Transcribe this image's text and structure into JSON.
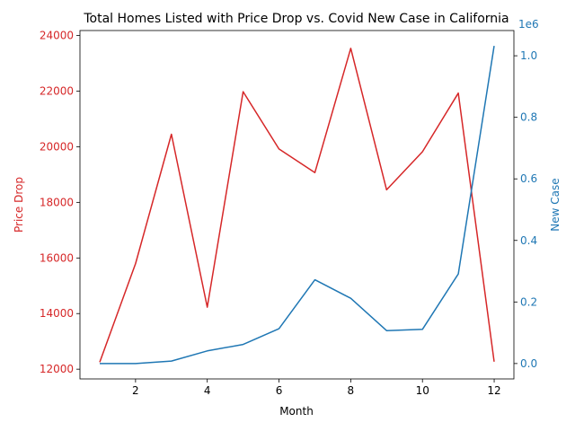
{
  "chart_data": {
    "type": "line",
    "title": "Total Homes Listed with Price Drop vs. Covid New Case in California",
    "xlabel": "Month",
    "x": [
      1,
      2,
      3,
      4,
      5,
      6,
      7,
      8,
      9,
      10,
      11,
      12
    ],
    "xticks": [
      2,
      4,
      6,
      8,
      10,
      12
    ],
    "xlim": [
      0.45,
      12.55
    ],
    "left_axis": {
      "label": "Price Drop",
      "color": "#d62728",
      "ylim": [
        11650,
        24180
      ],
      "ticks": [
        12000,
        14000,
        16000,
        18000,
        20000,
        22000,
        24000
      ]
    },
    "right_axis": {
      "label": "New Case",
      "color": "#1f77b4",
      "ylim": [
        -0.05,
        1.082
      ],
      "ticks": [
        0.0,
        0.2,
        0.4,
        0.6,
        0.8,
        1.0
      ],
      "tick_labels": [
        "0.0",
        "0.2",
        "0.4",
        "0.6",
        "0.8",
        "1.0"
      ],
      "offset_text": "1e6"
    },
    "series": [
      {
        "axis": "left",
        "color": "#d62728",
        "values": [
          12250,
          15800,
          20450,
          14230,
          21980,
          19920,
          19070,
          23540,
          18450,
          19820,
          21930,
          12270
        ]
      },
      {
        "axis": "right",
        "color": "#1f77b4",
        "values": [
          0.0,
          0.0,
          0.008,
          0.041,
          0.062,
          0.113,
          0.272,
          0.212,
          0.107,
          0.111,
          0.291,
          1.032
        ]
      }
    ]
  }
}
